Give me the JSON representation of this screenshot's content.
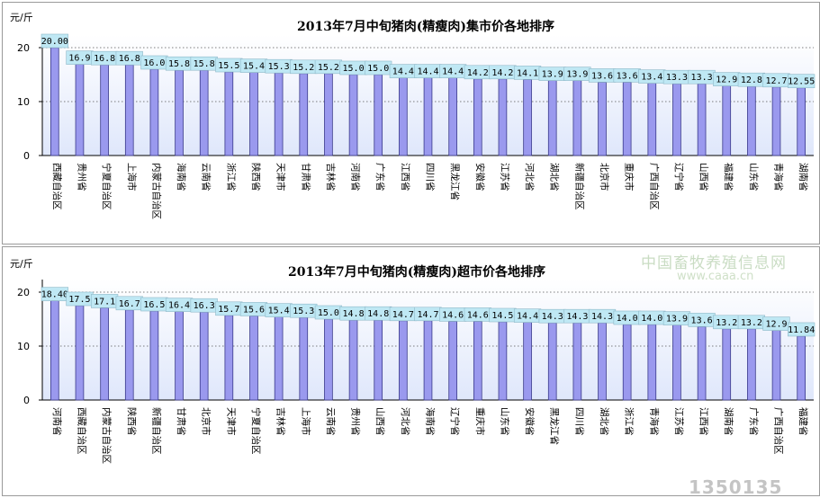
{
  "watermark": {
    "site_name": "中国畜牧养殖信息网",
    "site_url": "www.caaa.cn",
    "bottom_mark": "1350135"
  },
  "chart_data": [
    {
      "type": "bar",
      "title": "2013年7月中旬猪肉(精瘦肉)集市价各地排序",
      "ylabel": "元/斤",
      "ylim": [
        0,
        20
      ],
      "yticks": [
        0,
        10,
        20
      ],
      "grid": "dotted horizontal at 10 and 20",
      "bar_color": "#9a99ee",
      "label_box_color": "#bfe8f4",
      "categories": [
        "西藏自治区",
        "贵州省",
        "宁夏自治区",
        "上海市",
        "内蒙古自治区",
        "海南省",
        "云南省",
        "浙江省",
        "陕西省",
        "天津市",
        "甘肃省",
        "吉林省",
        "河南省",
        "广东省",
        "江西省",
        "四川省",
        "黑龙江省",
        "安徽省",
        "江苏省",
        "河北省",
        "湖北省",
        "新疆自治区",
        "北京市",
        "重庆市",
        "广西自治区",
        "辽宁省",
        "山西省",
        "福建省",
        "山东省",
        "青海省",
        "湖南省"
      ],
      "values": [
        20.0,
        16.9,
        16.8,
        16.8,
        16.0,
        15.8,
        15.8,
        15.5,
        15.4,
        15.3,
        15.2,
        15.2,
        15.0,
        15.0,
        14.4,
        14.4,
        14.4,
        14.2,
        14.2,
        14.1,
        13.9,
        13.9,
        13.6,
        13.6,
        13.4,
        13.3,
        13.3,
        12.9,
        12.8,
        12.7,
        12.55
      ],
      "data_labels": [
        "20.00",
        "16.9",
        "16.8",
        "16.8",
        "16.0",
        "15.8",
        "15.8",
        "15.5",
        "15.4",
        "15.3",
        "15.2",
        "15.2",
        "15.0",
        "15.0",
        "14.4",
        "14.4",
        "14.4",
        "14.2",
        "14.2",
        "14.1",
        "13.9",
        "13.9",
        "13.6",
        "13.6",
        "13.4",
        "13.3",
        "13.3",
        "12.9",
        "12.8",
        "12.7",
        "12.55"
      ]
    },
    {
      "type": "bar",
      "title": "2013年7月中旬猪肉(精瘦肉)超市价各地排序",
      "ylabel": "元/斤",
      "ylim": [
        0,
        20
      ],
      "yticks": [
        0,
        10,
        20
      ],
      "grid": "dotted horizontal at 10 and 20",
      "bar_color": "#9a99ee",
      "label_box_color": "#bfe8f4",
      "categories": [
        "河南省",
        "西藏自治区",
        "内蒙古自治区",
        "陕西省",
        "新疆自治区",
        "甘肃省",
        "北京市",
        "天津市",
        "宁夏自治区",
        "吉林省",
        "上海市",
        "云南省",
        "贵州省",
        "山西省",
        "河北省",
        "海南省",
        "辽宁省",
        "重庆市",
        "山东省",
        "安徽省",
        "黑龙江省",
        "四川省",
        "湖北省",
        "浙江省",
        "青海省",
        "江苏省",
        "江西省",
        "湖南省",
        "广东省",
        "广西自治区",
        "福建省"
      ],
      "values": [
        18.4,
        17.5,
        17.1,
        16.7,
        16.5,
        16.4,
        16.3,
        15.7,
        15.6,
        15.4,
        15.3,
        15.0,
        14.8,
        14.8,
        14.7,
        14.7,
        14.6,
        14.6,
        14.5,
        14.4,
        14.3,
        14.3,
        14.3,
        14.0,
        14.0,
        13.9,
        13.6,
        13.2,
        13.2,
        12.9,
        11.84
      ],
      "data_labels": [
        "18.40",
        "17.5",
        "17.1",
        "16.7",
        "16.5",
        "16.4",
        "16.3",
        "15.7",
        "15.6",
        "15.4",
        "15.3",
        "15.0",
        "14.8",
        "14.8",
        "14.7",
        "14.7",
        "14.6",
        "14.6",
        "14.5",
        "14.4",
        "14.3",
        "14.3",
        "14.3",
        "14.0",
        "14.0",
        "13.9",
        "13.6",
        "13.2",
        "13.2",
        "12.9",
        "11.84"
      ]
    }
  ]
}
